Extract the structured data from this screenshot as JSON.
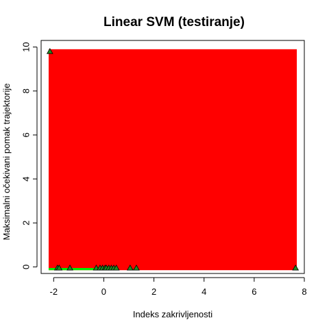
{
  "chart_data": {
    "type": "scatter",
    "title": "Linear SVM (testiranje)",
    "xlabel": "Indeks zakrivljenosti",
    "ylabel": "Maksimalni očekivani pomak trajektorije",
    "xlim": [
      -2.5,
      8.0
    ],
    "ylim": [
      -0.3,
      10.3
    ],
    "x_ticks": [
      -2,
      0,
      2,
      4,
      6,
      8
    ],
    "y_ticks": [
      0,
      2,
      4,
      6,
      8,
      10
    ],
    "x_tick_labels": [
      "-2",
      "0",
      "2",
      "4",
      "6",
      "8"
    ],
    "y_tick_labels": [
      "0",
      "2",
      "4",
      "6",
      "8",
      "10"
    ],
    "regions": [
      {
        "name": "class-positive",
        "color": "#ff0000",
        "x": [
          -2.2,
          7.7
        ],
        "y": [
          -0.15,
          9.9
        ]
      },
      {
        "name": "class-negative",
        "color": "#00ee00",
        "x": [
          -2.2,
          -0.4
        ],
        "y": [
          -0.15,
          -0.05
        ]
      }
    ],
    "points": {
      "marker": "triangle",
      "fill": "#228b22",
      "stroke": "#000000",
      "x": [
        -2.15,
        -1.85,
        -1.78,
        -1.35,
        -0.3,
        -0.15,
        -0.05,
        0.05,
        0.1,
        0.2,
        0.3,
        0.4,
        0.5,
        1.05,
        1.3,
        7.65
      ],
      "y": [
        9.8,
        -0.05,
        -0.05,
        -0.05,
        -0.05,
        -0.05,
        -0.05,
        -0.05,
        -0.05,
        -0.05,
        -0.05,
        -0.05,
        -0.05,
        -0.05,
        -0.05,
        -0.05
      ]
    }
  }
}
